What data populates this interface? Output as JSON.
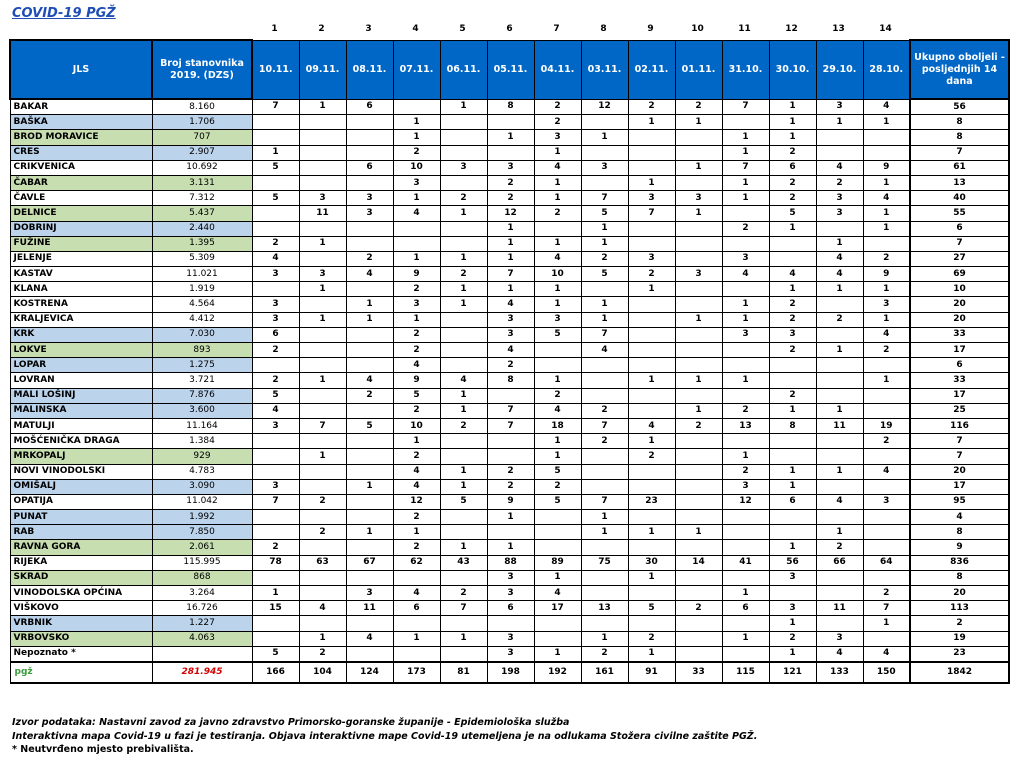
{
  "title": "COVID-19  PGŽ",
  "col_numbers": [
    "1",
    "2",
    "3",
    "4",
    "5",
    "6",
    "7",
    "8",
    "9",
    "10",
    "11",
    "12",
    "13",
    "14"
  ],
  "headers": {
    "jls": "JLS",
    "population": "Broj stanovnika 2019. (DZS)",
    "dates": [
      "10.11.",
      "09.11.",
      "08.11.",
      "07.11.",
      "06.11.",
      "05.11.",
      "04.11.",
      "03.11.",
      "02.11.",
      "01.11.",
      "31.10.",
      "30.10.",
      "29.10.",
      "28.10."
    ],
    "total": "Ukupno oboljeli - posljednjih 14 dana"
  },
  "rows": [
    {
      "name": "BAKAR",
      "pop": "8.160",
      "color": "white",
      "vals": [
        "7",
        "1",
        "6",
        "",
        "1",
        "8",
        "2",
        "12",
        "2",
        "2",
        "7",
        "1",
        "3",
        "4"
      ],
      "total": "56"
    },
    {
      "name": "BAŠKA",
      "pop": "1.706",
      "color": "blue",
      "vals": [
        "",
        "",
        "",
        "1",
        "",
        "",
        "2",
        "",
        "1",
        "1",
        "",
        "1",
        "1",
        "1"
      ],
      "total": "8"
    },
    {
      "name": "BROD MORAVICE",
      "pop": "707",
      "color": "green",
      "vals": [
        "",
        "",
        "",
        "1",
        "",
        "1",
        "3",
        "1",
        "",
        "",
        "1",
        "1",
        "",
        ""
      ],
      "total": "8"
    },
    {
      "name": "CRES",
      "pop": "2.907",
      "color": "blue",
      "vals": [
        "1",
        "",
        "",
        "2",
        "",
        "",
        "1",
        "",
        "",
        "",
        "1",
        "2",
        "",
        ""
      ],
      "total": "7"
    },
    {
      "name": "CRIKVENICA",
      "pop": "10.692",
      "color": "white",
      "vals": [
        "5",
        "",
        "6",
        "10",
        "3",
        "3",
        "4",
        "3",
        "",
        "1",
        "7",
        "6",
        "4",
        "9"
      ],
      "total": "61"
    },
    {
      "name": "ČABAR",
      "pop": "3.131",
      "color": "green",
      "vals": [
        "",
        "",
        "",
        "3",
        "",
        "2",
        "1",
        "",
        "1",
        "",
        "1",
        "2",
        "2",
        "1"
      ],
      "total": "13"
    },
    {
      "name": "ČAVLE",
      "pop": "7.312",
      "color": "white",
      "vals": [
        "5",
        "3",
        "3",
        "1",
        "2",
        "2",
        "1",
        "7",
        "3",
        "3",
        "1",
        "2",
        "3",
        "4"
      ],
      "total": "40"
    },
    {
      "name": "DELNICE",
      "pop": "5.437",
      "color": "green",
      "vals": [
        "",
        "11",
        "3",
        "4",
        "1",
        "12",
        "2",
        "5",
        "7",
        "1",
        "",
        "5",
        "3",
        "1"
      ],
      "total": "55"
    },
    {
      "name": "DOBRINJ",
      "pop": "2.440",
      "color": "blue",
      "vals": [
        "",
        "",
        "",
        "",
        "",
        "1",
        "",
        "1",
        "",
        "",
        "2",
        "1",
        "",
        "1"
      ],
      "total": "6"
    },
    {
      "name": "FUŽINE",
      "pop": "1.395",
      "color": "green",
      "vals": [
        "2",
        "1",
        "",
        "",
        "",
        "1",
        "1",
        "1",
        "",
        "",
        "",
        "",
        "1",
        ""
      ],
      "total": "7"
    },
    {
      "name": "JELENJE",
      "pop": "5.309",
      "color": "white",
      "vals": [
        "4",
        "",
        "2",
        "1",
        "1",
        "1",
        "4",
        "2",
        "3",
        "",
        "3",
        "",
        "4",
        "2"
      ],
      "total": "27"
    },
    {
      "name": "KASTAV",
      "pop": "11.021",
      "color": "white",
      "vals": [
        "3",
        "3",
        "4",
        "9",
        "2",
        "7",
        "10",
        "5",
        "2",
        "3",
        "4",
        "4",
        "4",
        "9"
      ],
      "total": "69"
    },
    {
      "name": "KLANA",
      "pop": "1.919",
      "color": "white",
      "vals": [
        "",
        "1",
        "",
        "2",
        "1",
        "1",
        "1",
        "",
        "1",
        "",
        "",
        "1",
        "1",
        "1"
      ],
      "total": "10"
    },
    {
      "name": "KOSTRENA",
      "pop": "4.564",
      "color": "white",
      "vals": [
        "3",
        "",
        "1",
        "3",
        "1",
        "4",
        "1",
        "1",
        "",
        "",
        "1",
        "2",
        "",
        "3"
      ],
      "total": "20"
    },
    {
      "name": "KRALJEVICA",
      "pop": "4.412",
      "color": "white",
      "vals": [
        "3",
        "1",
        "1",
        "1",
        "",
        "3",
        "3",
        "1",
        "",
        "1",
        "1",
        "2",
        "2",
        "1"
      ],
      "total": "20"
    },
    {
      "name": "KRK",
      "pop": "7.030",
      "color": "blue",
      "vals": [
        "6",
        "",
        "",
        "2",
        "",
        "3",
        "5",
        "7",
        "",
        "",
        "3",
        "3",
        "",
        "4"
      ],
      "total": "33"
    },
    {
      "name": "LOKVE",
      "pop": "893",
      "color": "green",
      "vals": [
        "2",
        "",
        "",
        "2",
        "",
        "4",
        "",
        "4",
        "",
        "",
        "",
        "2",
        "1",
        "2"
      ],
      "total": "17"
    },
    {
      "name": "LOPAR",
      "pop": "1.275",
      "color": "blue",
      "vals": [
        "",
        "",
        "",
        "4",
        "",
        "2",
        "",
        "",
        "",
        "",
        "",
        "",
        "",
        ""
      ],
      "total": "6"
    },
    {
      "name": "LOVRAN",
      "pop": "3.721",
      "color": "white",
      "vals": [
        "2",
        "1",
        "4",
        "9",
        "4",
        "8",
        "1",
        "",
        "1",
        "1",
        "1",
        "",
        "",
        "1"
      ],
      "total": "33"
    },
    {
      "name": "MALI LOŠINJ",
      "pop": "7.876",
      "color": "blue",
      "vals": [
        "5",
        "",
        "2",
        "5",
        "1",
        "",
        "2",
        "",
        "",
        "",
        "",
        "2",
        "",
        ""
      ],
      "total": "17"
    },
    {
      "name": "MALINSKA",
      "pop": "3.600",
      "color": "blue",
      "vals": [
        "4",
        "",
        "",
        "2",
        "1",
        "7",
        "4",
        "2",
        "",
        "1",
        "2",
        "1",
        "1",
        ""
      ],
      "total": "25"
    },
    {
      "name": "MATULJI",
      "pop": "11.164",
      "color": "white",
      "vals": [
        "3",
        "7",
        "5",
        "10",
        "2",
        "7",
        "18",
        "7",
        "4",
        "2",
        "13",
        "8",
        "11",
        "19"
      ],
      "total": "116"
    },
    {
      "name": "MOŠĆENIČKA DRAGA",
      "pop": "1.384",
      "color": "white",
      "vals": [
        "",
        "",
        "",
        "1",
        "",
        "",
        "1",
        "2",
        "1",
        "",
        "",
        "",
        "",
        "2"
      ],
      "total": "7"
    },
    {
      "name": "MRKOPALJ",
      "pop": "929",
      "color": "green",
      "vals": [
        "",
        "1",
        "",
        "2",
        "",
        "",
        "1",
        "",
        "2",
        "",
        "1",
        "",
        "",
        ""
      ],
      "total": "7"
    },
    {
      "name": "NOVI VINODOLSKI",
      "pop": "4.783",
      "color": "white",
      "vals": [
        "",
        "",
        "",
        "4",
        "1",
        "2",
        "5",
        "",
        "",
        "",
        "2",
        "1",
        "1",
        "4"
      ],
      "total": "20"
    },
    {
      "name": "OMIŠALJ",
      "pop": "3.090",
      "color": "blue",
      "vals": [
        "3",
        "",
        "1",
        "4",
        "1",
        "2",
        "2",
        "",
        "",
        "",
        "3",
        "1",
        "",
        ""
      ],
      "total": "17"
    },
    {
      "name": "OPATIJA",
      "pop": "11.042",
      "color": "white",
      "vals": [
        "7",
        "2",
        "",
        "12",
        "5",
        "9",
        "5",
        "7",
        "23",
        "",
        "12",
        "6",
        "4",
        "3"
      ],
      "total": "95"
    },
    {
      "name": "PUNAT",
      "pop": "1.992",
      "color": "blue",
      "vals": [
        "",
        "",
        "",
        "2",
        "",
        "1",
        "",
        "1",
        "",
        "",
        "",
        "",
        "",
        ""
      ],
      "total": "4"
    },
    {
      "name": "RAB",
      "pop": "7.850",
      "color": "blue",
      "vals": [
        "",
        "2",
        "1",
        "1",
        "",
        "",
        "",
        "1",
        "1",
        "1",
        "",
        "",
        "1",
        ""
      ],
      "total": "8"
    },
    {
      "name": "RAVNA GORA",
      "pop": "2.061",
      "color": "green",
      "vals": [
        "2",
        "",
        "",
        "2",
        "1",
        "1",
        "",
        "",
        "",
        "",
        "",
        "1",
        "2",
        ""
      ],
      "total": "9"
    },
    {
      "name": "RIJEKA",
      "pop": "115.995",
      "color": "white",
      "vals": [
        "78",
        "63",
        "67",
        "62",
        "43",
        "88",
        "89",
        "75",
        "30",
        "14",
        "41",
        "56",
        "66",
        "64"
      ],
      "total": "836"
    },
    {
      "name": "SKRAD",
      "pop": "868",
      "color": "green",
      "vals": [
        "",
        "",
        "",
        "",
        "",
        "3",
        "1",
        "",
        "1",
        "",
        "",
        "3",
        "",
        ""
      ],
      "total": "8"
    },
    {
      "name": "VINODOLSKA OPĆINA",
      "pop": "3.264",
      "color": "white",
      "vals": [
        "1",
        "",
        "3",
        "4",
        "2",
        "3",
        "4",
        "",
        "",
        "",
        "1",
        "",
        "",
        "2"
      ],
      "total": "20"
    },
    {
      "name": "VIŠKOVO",
      "pop": "16.726",
      "color": "white",
      "vals": [
        "15",
        "4",
        "11",
        "6",
        "7",
        "6",
        "17",
        "13",
        "5",
        "2",
        "6",
        "3",
        "11",
        "7"
      ],
      "total": "113"
    },
    {
      "name": "VRBNIK",
      "pop": "1.227",
      "color": "blue",
      "vals": [
        "",
        "",
        "",
        "",
        "",
        "",
        "",
        "",
        "",
        "",
        "",
        "1",
        "",
        "1"
      ],
      "total": "2"
    },
    {
      "name": "VRBOVSKO",
      "pop": "4.063",
      "color": "green",
      "vals": [
        "",
        "1",
        "4",
        "1",
        "1",
        "3",
        "",
        "1",
        "2",
        "",
        "1",
        "2",
        "3",
        ""
      ],
      "total": "19"
    },
    {
      "name": "Nepoznato *",
      "pop": "",
      "color": "white",
      "vals": [
        "5",
        "2",
        "",
        "",
        "",
        "3",
        "1",
        "2",
        "1",
        "",
        "",
        "1",
        "4",
        "4"
      ],
      "total": "23"
    }
  ],
  "footer": {
    "logo": "pgž",
    "pop_total": "281.945",
    "vals": [
      "166",
      "104",
      "124",
      "173",
      "81",
      "198",
      "192",
      "161",
      "91",
      "33",
      "115",
      "121",
      "133",
      "150"
    ],
    "total": "1842"
  },
  "notes": {
    "line1": "Izvor podataka: Nastavni zavod za javno zdravstvo Primorsko-goranske županije  - Epidemiološka služba",
    "line2": "Interaktivna mapa Covid-19 u fazi je testiranja. Objava interaktivne mape Covid-19 utemeljena je na odlukama Stožera civilne zaštite PGŽ.",
    "line3": "* Neutvrđeno mjesto prebivališta."
  }
}
